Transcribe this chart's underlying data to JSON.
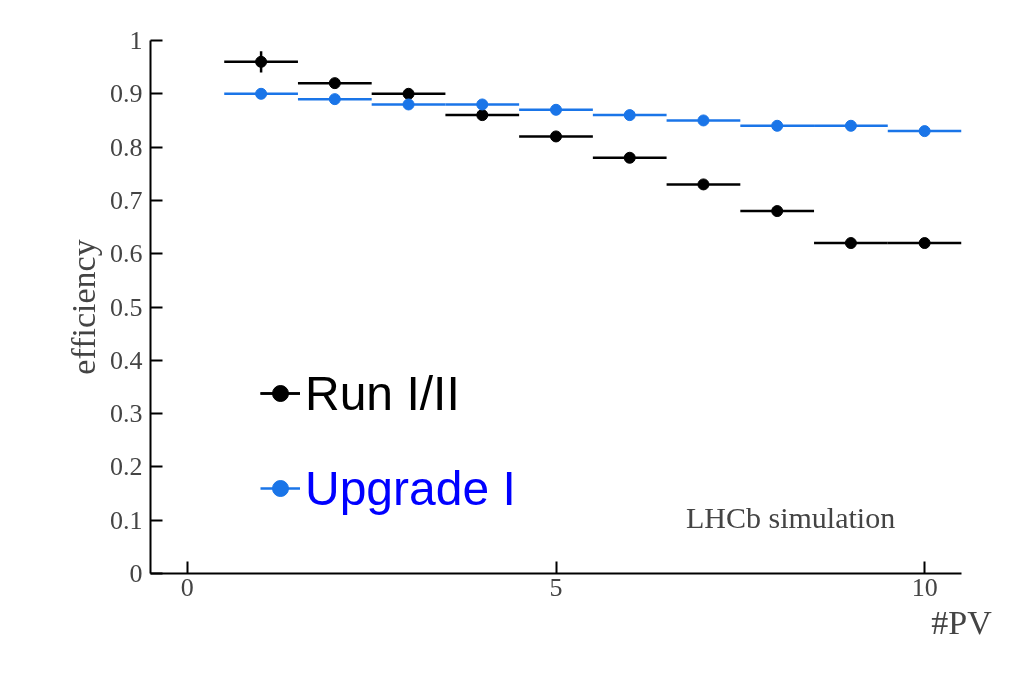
{
  "chart_data": {
    "type": "scatter",
    "xlabel": "#PV",
    "ylabel": "efficiency",
    "x": [
      1,
      2,
      3,
      4,
      5,
      6,
      7,
      8,
      9,
      10
    ],
    "series": [
      {
        "name": "Run I/II",
        "color": "#000000",
        "values": [
          0.96,
          0.92,
          0.9,
          0.86,
          0.82,
          0.78,
          0.73,
          0.68,
          0.62,
          0.62
        ],
        "errors": [
          0.02,
          null,
          null,
          null,
          null,
          null,
          null,
          null,
          null,
          null
        ],
        "xerrors": [
          0.5,
          0.5,
          0.5,
          0.5,
          0.5,
          0.5,
          0.5,
          0.5,
          0.5,
          0.5
        ]
      },
      {
        "name": "Upgrade I",
        "color": "#1a75e8",
        "values": [
          0.9,
          0.89,
          0.88,
          0.88,
          0.87,
          0.86,
          0.85,
          0.84,
          0.84,
          0.83
        ],
        "xerrors": [
          0.5,
          0.5,
          0.5,
          0.5,
          0.5,
          0.5,
          0.5,
          0.5,
          0.5,
          0.5
        ]
      }
    ],
    "xlim": [
      -0.5,
      10.5
    ],
    "ylim": [
      0,
      1
    ],
    "xticks": [
      0,
      5,
      10
    ],
    "yticks": [
      0,
      0.1,
      0.2,
      0.3,
      0.4,
      0.5,
      0.6,
      0.7,
      0.8,
      0.9,
      1
    ],
    "marker": "circle",
    "grid": false,
    "legend": "bottom left",
    "annotations": [
      "LHCb simulation"
    ]
  }
}
